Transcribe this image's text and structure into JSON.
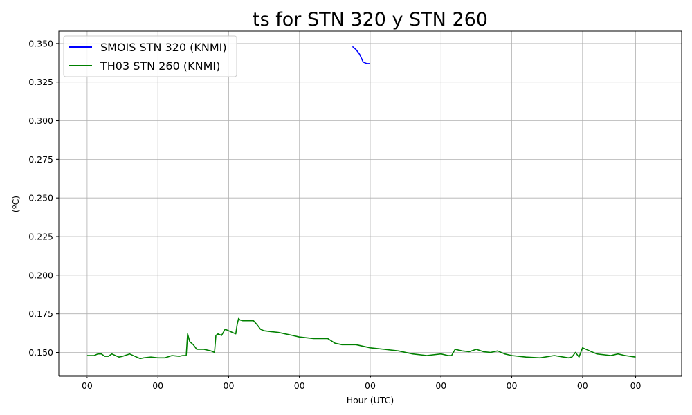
{
  "chart_data": {
    "type": "line",
    "title": "ts for STN 320 y STN 260",
    "xlabel": "Hour (UTC)",
    "ylabel": "(ºC)",
    "ylim": [
      0.135,
      0.358
    ],
    "xlim": [
      -0.4,
      8.4
    ],
    "grid": true,
    "legend_position": "top-left",
    "x_ticks": [
      0,
      1,
      2,
      3,
      4,
      5,
      6,
      7,
      7.75
    ],
    "x_tick_labels": [
      "00",
      "00",
      "00",
      "00",
      "00",
      "00",
      "00",
      "00",
      "00"
    ],
    "y_ticks": [
      0.15,
      0.175,
      0.2,
      0.225,
      0.25,
      0.275,
      0.3,
      0.325,
      0.35
    ],
    "y_tick_labels": [
      "0.150",
      "0.175",
      "0.200",
      "0.225",
      "0.250",
      "0.275",
      "0.300",
      "0.325",
      "0.350"
    ],
    "series": [
      {
        "name": "SMOIS STN 320 (KNMI)",
        "color": "#0000ff",
        "x": [
          3.75,
          3.8,
          3.85,
          3.9,
          3.95,
          4.0
        ],
        "y": [
          0.348,
          0.346,
          0.343,
          0.338,
          0.337,
          0.337
        ]
      },
      {
        "name": "TH03 STN 260 (KNMI)",
        "color": "#008000",
        "x": [
          0.0,
          0.1,
          0.15,
          0.2,
          0.25,
          0.3,
          0.35,
          0.4,
          0.45,
          0.5,
          0.6,
          0.7,
          0.75,
          0.8,
          0.9,
          1.0,
          1.1,
          1.2,
          1.3,
          1.35,
          1.4,
          1.42,
          1.45,
          1.5,
          1.55,
          1.65,
          1.75,
          1.8,
          1.82,
          1.85,
          1.9,
          1.95,
          2.0,
          2.05,
          2.1,
          2.12,
          2.14,
          2.16,
          2.2,
          2.3,
          2.35,
          2.4,
          2.45,
          2.5,
          2.6,
          2.7,
          2.8,
          2.9,
          3.0,
          3.2,
          3.4,
          3.5,
          3.6,
          3.8,
          4.0,
          4.2,
          4.4,
          4.6,
          4.8,
          5.0,
          5.1,
          5.15,
          5.2,
          5.3,
          5.4,
          5.5,
          5.6,
          5.7,
          5.8,
          5.9,
          6.0,
          6.2,
          6.4,
          6.6,
          6.8,
          6.85,
          6.9,
          6.95,
          7.0,
          7.2,
          7.4,
          7.5,
          7.6,
          7.75
        ],
        "y": [
          0.148,
          0.148,
          0.149,
          0.149,
          0.1475,
          0.1475,
          0.149,
          0.148,
          0.147,
          0.1475,
          0.149,
          0.147,
          0.146,
          0.1465,
          0.147,
          0.1465,
          0.1465,
          0.148,
          0.1475,
          0.148,
          0.148,
          0.162,
          0.157,
          0.155,
          0.152,
          0.152,
          0.151,
          0.15,
          0.161,
          0.162,
          0.161,
          0.165,
          0.164,
          0.163,
          0.162,
          0.168,
          0.172,
          0.171,
          0.1705,
          0.1705,
          0.1705,
          0.168,
          0.165,
          0.164,
          0.1635,
          0.163,
          0.162,
          0.161,
          0.16,
          0.159,
          0.159,
          0.156,
          0.155,
          0.155,
          0.153,
          0.152,
          0.151,
          0.149,
          0.148,
          0.149,
          0.148,
          0.148,
          0.152,
          0.151,
          0.1505,
          0.152,
          0.1505,
          0.15,
          0.151,
          0.149,
          0.148,
          0.147,
          0.1465,
          0.148,
          0.1465,
          0.147,
          0.15,
          0.147,
          0.153,
          0.149,
          0.148,
          0.149,
          0.148,
          0.147
        ]
      }
    ]
  }
}
